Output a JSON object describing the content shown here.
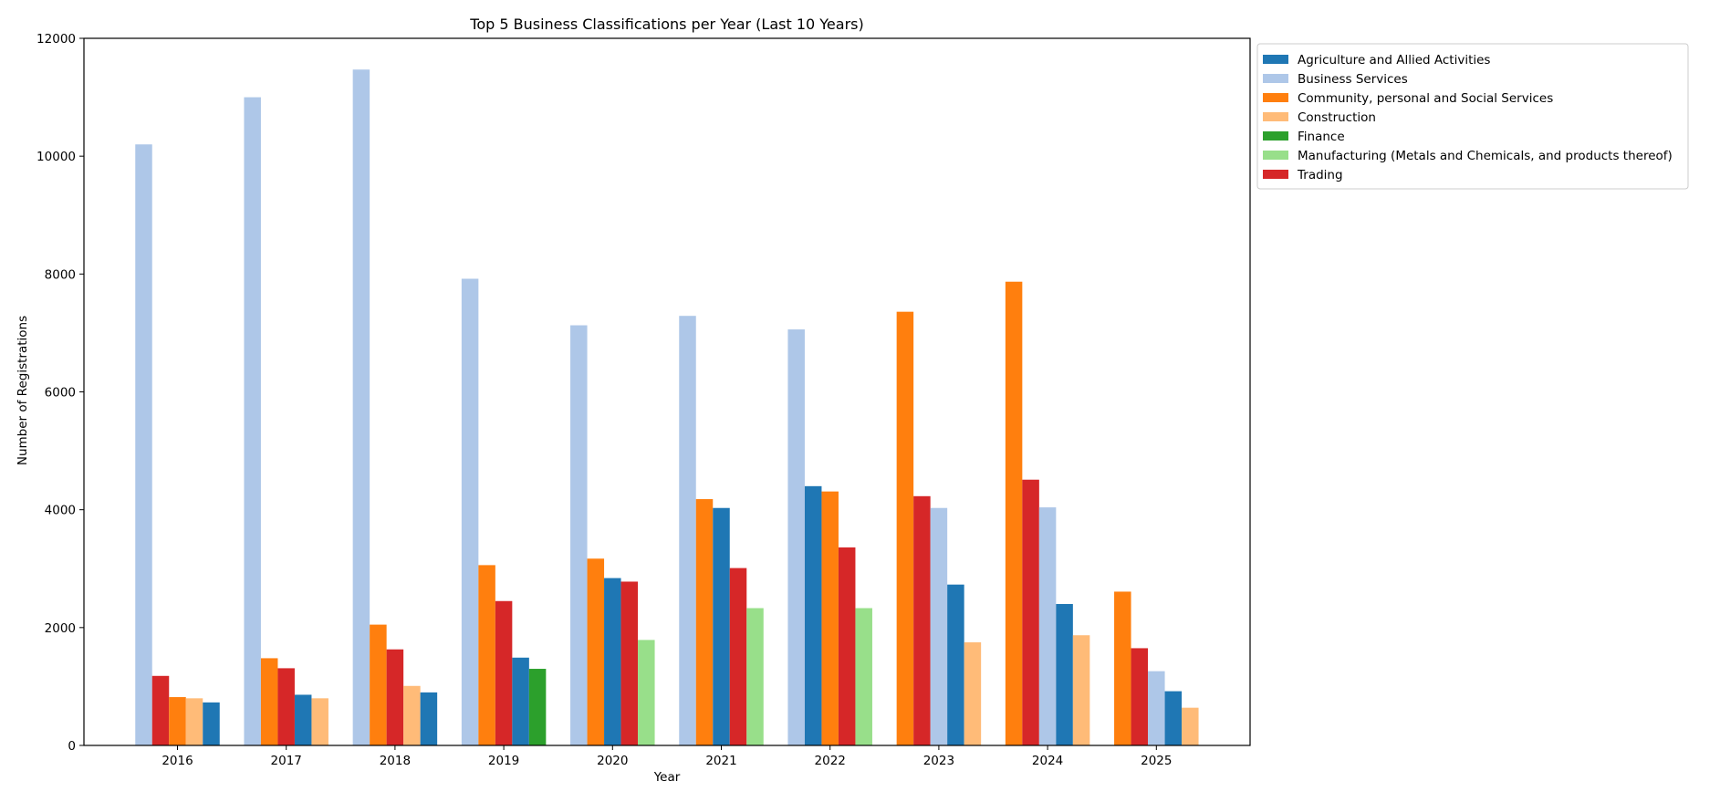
{
  "chart_data": {
    "type": "bar",
    "title": "Top 5 Business Classifications per Year (Last 10 Years)",
    "xlabel": "Year",
    "ylabel": "Number of Registrations",
    "ylim": [
      0,
      12000
    ],
    "yticks": [
      0,
      2000,
      4000,
      6000,
      8000,
      10000,
      12000
    ],
    "grid": false,
    "legend_position": "outside-top-right",
    "series": [
      {
        "name": "Agriculture and Allied Activities",
        "color": "#1f77b4"
      },
      {
        "name": "Business Services",
        "color": "#aec7e8"
      },
      {
        "name": "Community, personal and Social Services",
        "color": "#ff7f0e"
      },
      {
        "name": "Construction",
        "color": "#ffbb78"
      },
      {
        "name": "Finance",
        "color": "#2ca02c"
      },
      {
        "name": "Manufacturing (Metals and Chemicals, and products thereof)",
        "color": "#98df8a"
      },
      {
        "name": "Trading",
        "color": "#d62728"
      }
    ],
    "years": [
      {
        "year": "2016",
        "bars": [
          {
            "series": "Business Services",
            "value": 10200
          },
          {
            "series": "Trading",
            "value": 1180
          },
          {
            "series": "Community, personal and Social Services",
            "value": 820
          },
          {
            "series": "Construction",
            "value": 800
          },
          {
            "series": "Agriculture and Allied Activities",
            "value": 730
          }
        ]
      },
      {
        "year": "2017",
        "bars": [
          {
            "series": "Business Services",
            "value": 11000
          },
          {
            "series": "Community, personal and Social Services",
            "value": 1480
          },
          {
            "series": "Trading",
            "value": 1310
          },
          {
            "series": "Agriculture and Allied Activities",
            "value": 860
          },
          {
            "series": "Construction",
            "value": 800
          }
        ]
      },
      {
        "year": "2018",
        "bars": [
          {
            "series": "Business Services",
            "value": 11470
          },
          {
            "series": "Community, personal and Social Services",
            "value": 2050
          },
          {
            "series": "Trading",
            "value": 1630
          },
          {
            "series": "Construction",
            "value": 1010
          },
          {
            "series": "Agriculture and Allied Activities",
            "value": 900
          }
        ]
      },
      {
        "year": "2019",
        "bars": [
          {
            "series": "Business Services",
            "value": 7920
          },
          {
            "series": "Community, personal and Social Services",
            "value": 3060
          },
          {
            "series": "Trading",
            "value": 2450
          },
          {
            "series": "Agriculture and Allied Activities",
            "value": 1490
          },
          {
            "series": "Finance",
            "value": 1300
          }
        ]
      },
      {
        "year": "2020",
        "bars": [
          {
            "series": "Business Services",
            "value": 7130
          },
          {
            "series": "Community, personal and Social Services",
            "value": 3170
          },
          {
            "series": "Agriculture and Allied Activities",
            "value": 2840
          },
          {
            "series": "Trading",
            "value": 2780
          },
          {
            "series": "Manufacturing (Metals and Chemicals, and products thereof)",
            "value": 1790
          }
        ]
      },
      {
        "year": "2021",
        "bars": [
          {
            "series": "Business Services",
            "value": 7290
          },
          {
            "series": "Community, personal and Social Services",
            "value": 4180
          },
          {
            "series": "Agriculture and Allied Activities",
            "value": 4030
          },
          {
            "series": "Trading",
            "value": 3010
          },
          {
            "series": "Manufacturing (Metals and Chemicals, and products thereof)",
            "value": 2330
          }
        ]
      },
      {
        "year": "2022",
        "bars": [
          {
            "series": "Business Services",
            "value": 7060
          },
          {
            "series": "Agriculture and Allied Activities",
            "value": 4400
          },
          {
            "series": "Community, personal and Social Services",
            "value": 4310
          },
          {
            "series": "Trading",
            "value": 3360
          },
          {
            "series": "Manufacturing (Metals and Chemicals, and products thereof)",
            "value": 2330
          }
        ]
      },
      {
        "year": "2023",
        "bars": [
          {
            "series": "Community, personal and Social Services",
            "value": 7360
          },
          {
            "series": "Trading",
            "value": 4230
          },
          {
            "series": "Business Services",
            "value": 4030
          },
          {
            "series": "Agriculture and Allied Activities",
            "value": 2730
          },
          {
            "series": "Construction",
            "value": 1750
          }
        ]
      },
      {
        "year": "2024",
        "bars": [
          {
            "series": "Community, personal and Social Services",
            "value": 7870
          },
          {
            "series": "Trading",
            "value": 4510
          },
          {
            "series": "Business Services",
            "value": 4040
          },
          {
            "series": "Agriculture and Allied Activities",
            "value": 2400
          },
          {
            "series": "Construction",
            "value": 1870
          }
        ]
      },
      {
        "year": "2025",
        "bars": [
          {
            "series": "Community, personal and Social Services",
            "value": 2610
          },
          {
            "series": "Trading",
            "value": 1650
          },
          {
            "series": "Business Services",
            "value": 1260
          },
          {
            "series": "Agriculture and Allied Activities",
            "value": 920
          },
          {
            "series": "Construction",
            "value": 640
          }
        ]
      }
    ]
  }
}
